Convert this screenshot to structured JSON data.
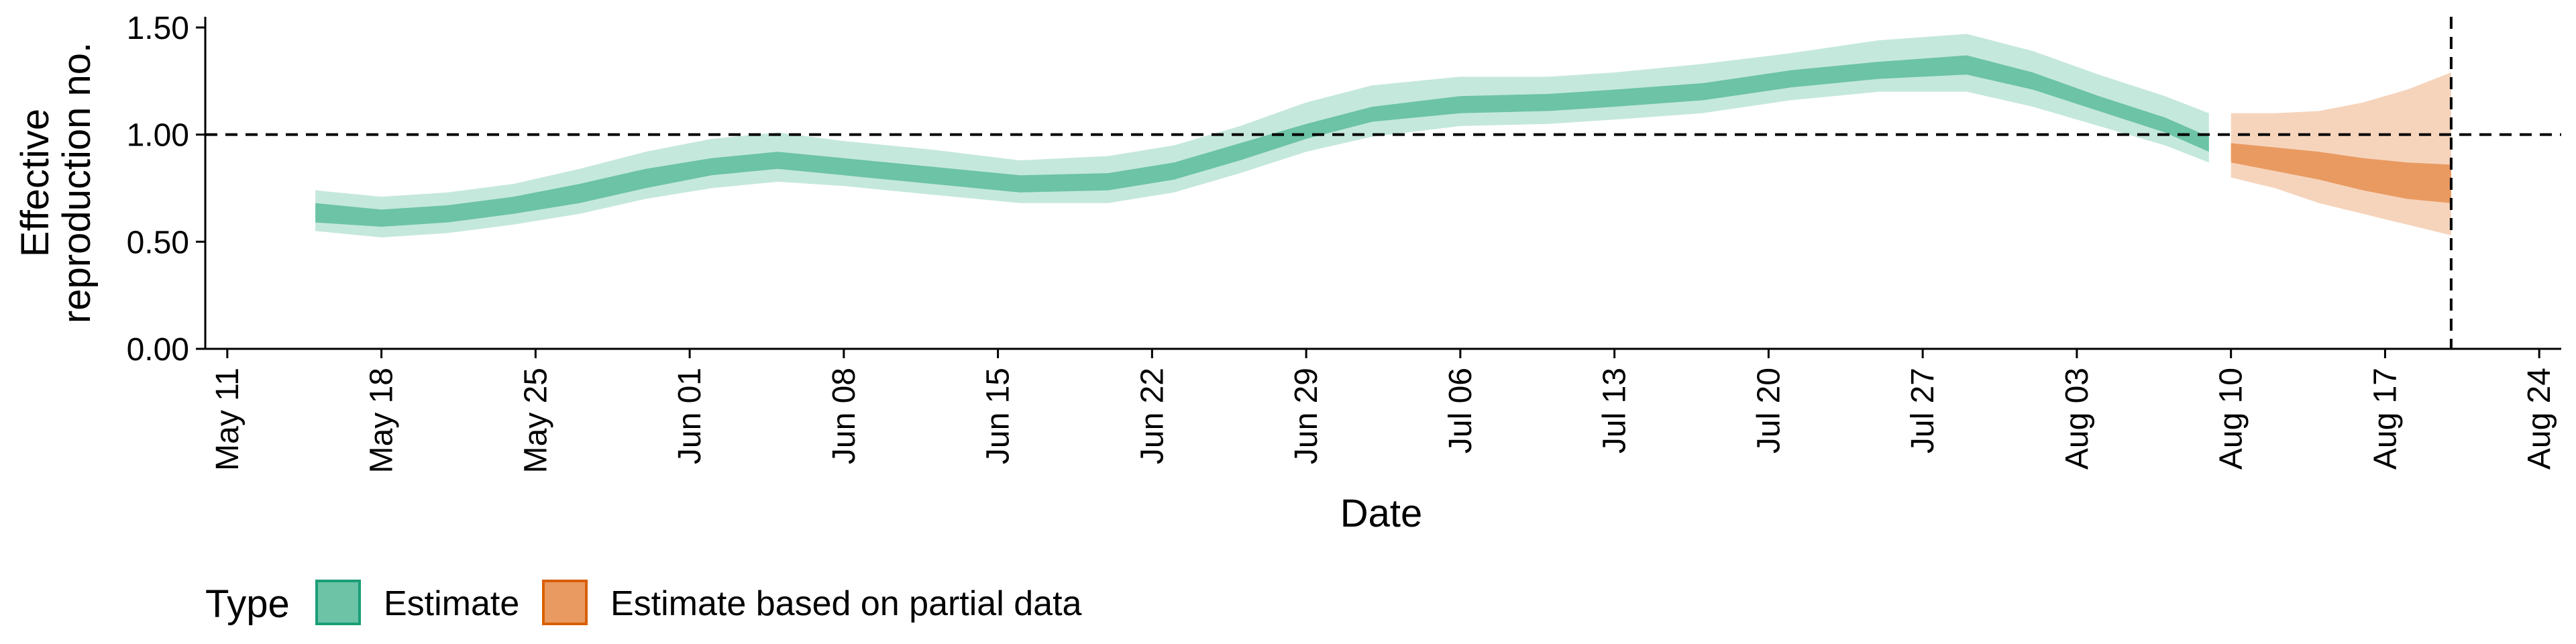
{
  "chart_data": {
    "type": "area",
    "xlabel": "Date",
    "ylabel_lines": [
      "Effective",
      "reproduction no."
    ],
    "ylim": [
      0,
      1.55
    ],
    "y_ticks": [
      {
        "value": 0.0,
        "label": "0.00"
      },
      {
        "value": 0.5,
        "label": "0.50"
      },
      {
        "value": 1.0,
        "label": "1.00"
      },
      {
        "value": 1.5,
        "label": "1.50"
      }
    ],
    "xlim": [
      "2020-05-10",
      "2020-08-25"
    ],
    "x_ticks": [
      {
        "date": "2020-05-11",
        "label": "May 11"
      },
      {
        "date": "2020-05-18",
        "label": "May 18"
      },
      {
        "date": "2020-05-25",
        "label": "May 25"
      },
      {
        "date": "2020-06-01",
        "label": "Jun 01"
      },
      {
        "date": "2020-06-08",
        "label": "Jun 08"
      },
      {
        "date": "2020-06-15",
        "label": "Jun 15"
      },
      {
        "date": "2020-06-22",
        "label": "Jun 22"
      },
      {
        "date": "2020-06-29",
        "label": "Jun 29"
      },
      {
        "date": "2020-07-06",
        "label": "Jul 06"
      },
      {
        "date": "2020-07-13",
        "label": "Jul 13"
      },
      {
        "date": "2020-07-20",
        "label": "Jul 20"
      },
      {
        "date": "2020-07-27",
        "label": "Jul 27"
      },
      {
        "date": "2020-08-03",
        "label": "Aug 03"
      },
      {
        "date": "2020-08-10",
        "label": "Aug 10"
      },
      {
        "date": "2020-08-17",
        "label": "Aug 17"
      },
      {
        "date": "2020-08-24",
        "label": "Aug 24"
      }
    ],
    "hline": 1.0,
    "vline": "2020-08-20",
    "legend": {
      "title": "Type",
      "position": "bottom",
      "entries": [
        {
          "label": "Estimate",
          "fill": "#6cc3a6",
          "stroke": "#1b9e77"
        },
        {
          "label": "Estimate based on partial data",
          "fill": "#e99a61",
          "stroke": "#d95f02"
        }
      ]
    },
    "series": [
      {
        "type": "Estimate",
        "inner_color": "#6cc3a6",
        "outer_color": "#c5e8dc",
        "points": [
          {
            "date": "2020-05-15",
            "l90": 0.55,
            "l50": 0.59,
            "u50": 0.68,
            "u90": 0.74
          },
          {
            "date": "2020-05-18",
            "l90": 0.52,
            "l50": 0.57,
            "u50": 0.65,
            "u90": 0.71
          },
          {
            "date": "2020-05-21",
            "l90": 0.54,
            "l50": 0.59,
            "u50": 0.67,
            "u90": 0.73
          },
          {
            "date": "2020-05-24",
            "l90": 0.58,
            "l50": 0.63,
            "u50": 0.71,
            "u90": 0.77
          },
          {
            "date": "2020-05-27",
            "l90": 0.63,
            "l50": 0.68,
            "u50": 0.77,
            "u90": 0.84
          },
          {
            "date": "2020-05-30",
            "l90": 0.7,
            "l50": 0.75,
            "u50": 0.84,
            "u90": 0.92
          },
          {
            "date": "2020-06-02",
            "l90": 0.75,
            "l50": 0.81,
            "u50": 0.89,
            "u90": 0.98
          },
          {
            "date": "2020-06-05",
            "l90": 0.78,
            "l50": 0.84,
            "u50": 0.92,
            "u90": 1.01
          },
          {
            "date": "2020-06-08",
            "l90": 0.76,
            "l50": 0.81,
            "u50": 0.89,
            "u90": 0.97
          },
          {
            "date": "2020-06-12",
            "l90": 0.72,
            "l50": 0.77,
            "u50": 0.85,
            "u90": 0.93
          },
          {
            "date": "2020-06-16",
            "l90": 0.68,
            "l50": 0.73,
            "u50": 0.81,
            "u90": 0.88
          },
          {
            "date": "2020-06-20",
            "l90": 0.68,
            "l50": 0.74,
            "u50": 0.82,
            "u90": 0.9
          },
          {
            "date": "2020-06-23",
            "l90": 0.73,
            "l50": 0.79,
            "u50": 0.87,
            "u90": 0.95
          },
          {
            "date": "2020-06-26",
            "l90": 0.82,
            "l50": 0.88,
            "u50": 0.96,
            "u90": 1.04
          },
          {
            "date": "2020-06-29",
            "l90": 0.92,
            "l50": 0.98,
            "u50": 1.05,
            "u90": 1.15
          },
          {
            "date": "2020-07-02",
            "l90": 0.99,
            "l50": 1.06,
            "u50": 1.13,
            "u90": 1.23
          },
          {
            "date": "2020-07-06",
            "l90": 1.04,
            "l50": 1.1,
            "u50": 1.18,
            "u90": 1.27
          },
          {
            "date": "2020-07-10",
            "l90": 1.05,
            "l50": 1.11,
            "u50": 1.19,
            "u90": 1.27
          },
          {
            "date": "2020-07-13",
            "l90": 1.07,
            "l50": 1.13,
            "u50": 1.21,
            "u90": 1.29
          },
          {
            "date": "2020-07-17",
            "l90": 1.1,
            "l50": 1.16,
            "u50": 1.24,
            "u90": 1.33
          },
          {
            "date": "2020-07-21",
            "l90": 1.16,
            "l50": 1.22,
            "u50": 1.3,
            "u90": 1.38
          },
          {
            "date": "2020-07-25",
            "l90": 1.2,
            "l50": 1.26,
            "u50": 1.34,
            "u90": 1.44
          },
          {
            "date": "2020-07-29",
            "l90": 1.2,
            "l50": 1.28,
            "u50": 1.37,
            "u90": 1.47
          },
          {
            "date": "2020-08-01",
            "l90": 1.13,
            "l50": 1.21,
            "u50": 1.29,
            "u90": 1.39
          },
          {
            "date": "2020-08-04",
            "l90": 1.04,
            "l50": 1.11,
            "u50": 1.18,
            "u90": 1.28
          },
          {
            "date": "2020-08-07",
            "l90": 0.95,
            "l50": 1.01,
            "u50": 1.08,
            "u90": 1.18
          },
          {
            "date": "2020-08-09",
            "l90": 0.87,
            "l50": 0.92,
            "u50": 0.99,
            "u90": 1.1
          }
        ]
      },
      {
        "type": "Estimate based on partial data",
        "inner_color": "#e99a61",
        "outer_color": "#f6d4bc",
        "points": [
          {
            "date": "2020-08-10",
            "l90": 0.8,
            "l50": 0.87,
            "u50": 0.96,
            "u90": 1.1
          },
          {
            "date": "2020-08-12",
            "l90": 0.75,
            "l50": 0.83,
            "u50": 0.94,
            "u90": 1.1
          },
          {
            "date": "2020-08-14",
            "l90": 0.68,
            "l50": 0.79,
            "u50": 0.92,
            "u90": 1.11
          },
          {
            "date": "2020-08-16",
            "l90": 0.63,
            "l50": 0.74,
            "u50": 0.89,
            "u90": 1.15
          },
          {
            "date": "2020-08-18",
            "l90": 0.58,
            "l50": 0.7,
            "u50": 0.87,
            "u90": 1.21
          },
          {
            "date": "2020-08-20",
            "l90": 0.53,
            "l50": 0.68,
            "u50": 0.86,
            "u90": 1.29
          }
        ]
      }
    ]
  }
}
